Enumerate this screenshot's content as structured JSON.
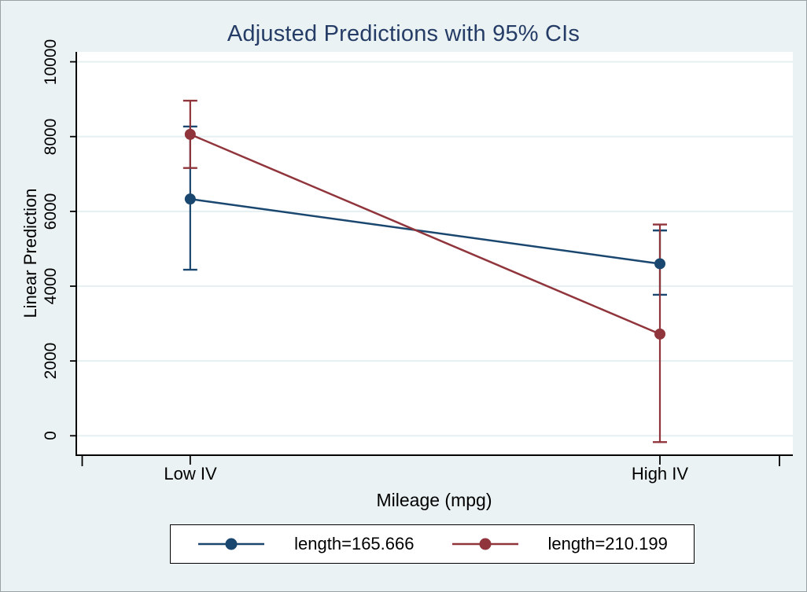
{
  "chart_data": {
    "type": "line",
    "title": "Adjusted Predictions with 95% CIs",
    "xlabel": "Mileage (mpg)",
    "ylabel": "Linear Prediction",
    "categories": [
      "Low IV",
      "High IV"
    ],
    "yticks": [
      0,
      2000,
      4000,
      6000,
      8000,
      10000
    ],
    "ylim": [
      -520,
      10265
    ],
    "grid": true,
    "legend_position": "bottom-center",
    "error_bars": "95% confidence intervals with caps",
    "series": [
      {
        "name": "length=165.666",
        "color": "#1a476f",
        "values": [
          6330,
          4600
        ],
        "ci_low": [
          4440,
          3770
        ],
        "ci_high": [
          8270,
          5490
        ]
      },
      {
        "name": "length=210.199",
        "color": "#90353b",
        "values": [
          8060,
          2720
        ],
        "ci_low": [
          7160,
          -170
        ],
        "ci_high": [
          8960,
          5650
        ]
      }
    ]
  },
  "colors": {
    "background": "#eaf2f3",
    "plot_background": "#ffffff",
    "gridline": "#e6eff1",
    "axis": "#000000",
    "title_text": "#253c66",
    "body_text": "#000000"
  }
}
